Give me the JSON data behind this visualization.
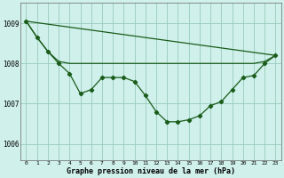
{
  "title": "Graphe pression niveau de la mer (hPa)",
  "bg_color": "#cff0eb",
  "grid_color": "#99ccbb",
  "line_color": "#1a5c1a",
  "ylim": [
    1005.6,
    1009.5
  ],
  "yticks": [
    1006,
    1007,
    1008,
    1009
  ],
  "xlim": [
    -0.5,
    23.5
  ],
  "x_ticks": [
    0,
    1,
    2,
    3,
    4,
    5,
    6,
    7,
    8,
    9,
    10,
    11,
    12,
    13,
    14,
    15,
    16,
    17,
    18,
    19,
    20,
    21,
    22,
    23
  ],
  "curve_x": [
    0,
    1,
    2,
    3,
    4,
    5,
    6,
    7,
    8,
    9,
    10,
    11,
    12,
    13,
    14,
    15,
    16,
    17,
    18,
    19,
    20,
    21,
    22,
    23
  ],
  "curve_y": [
    1009.05,
    1008.65,
    1008.3,
    1008.0,
    1007.75,
    1007.25,
    1007.35,
    1007.65,
    1007.65,
    1007.65,
    1007.55,
    1007.2,
    1006.8,
    1006.55,
    1006.55,
    1006.6,
    1006.7,
    1006.95,
    1007.05,
    1007.35,
    1007.65,
    1007.7,
    1008.0,
    1008.2
  ],
  "flat_line_x": [
    0,
    1,
    2,
    3,
    4,
    5,
    6,
    7,
    8,
    9,
    10,
    11,
    12,
    13,
    14,
    15,
    16,
    17,
    18,
    19,
    20,
    21,
    22,
    23
  ],
  "flat_line_y": [
    1009.05,
    1008.65,
    1008.3,
    1008.05,
    1008.0,
    1008.0,
    1008.0,
    1008.0,
    1008.0,
    1008.0,
    1008.0,
    1008.0,
    1008.0,
    1008.0,
    1008.0,
    1008.0,
    1008.0,
    1008.0,
    1008.0,
    1008.0,
    1008.0,
    1008.0,
    1008.05,
    1008.2
  ],
  "diag_line_x": [
    0,
    23
  ],
  "diag_line_y": [
    1009.05,
    1008.2
  ]
}
